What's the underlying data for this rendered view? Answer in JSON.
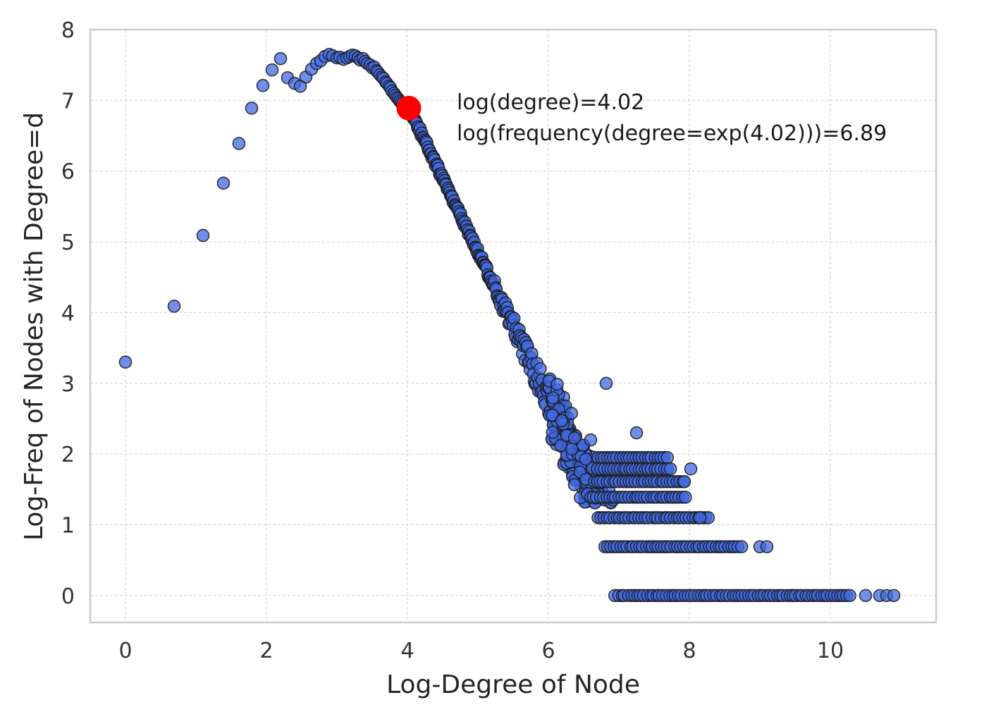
{
  "chart_data": {
    "type": "scatter",
    "xlabel": "Log-Degree of Node",
    "ylabel": "Log-Freq of Nodes with Degree=d",
    "xlim": [
      -0.5,
      11.5
    ],
    "ylim": [
      -0.38,
      8.0
    ],
    "xticks": [
      0,
      2,
      4,
      6,
      8,
      10
    ],
    "yticks": [
      0,
      1,
      2,
      3,
      4,
      5,
      6,
      7,
      8
    ],
    "grid": true,
    "marker_color": "#4169e1",
    "highlight_color": "#ff0000",
    "points": [
      [
        0.0,
        3.3
      ],
      [
        0.69,
        4.09
      ],
      [
        1.1,
        5.09
      ],
      [
        1.39,
        5.83
      ],
      [
        1.61,
        6.39
      ],
      [
        1.79,
        6.89
      ],
      [
        1.95,
        7.21
      ],
      [
        2.08,
        7.43
      ],
      [
        2.2,
        7.59
      ],
      [
        2.3,
        7.32
      ],
      [
        2.4,
        7.24
      ],
      [
        2.48,
        7.2
      ],
      [
        2.56,
        7.33
      ],
      [
        2.64,
        7.44
      ],
      [
        2.71,
        7.52
      ],
      [
        2.77,
        7.56
      ],
      [
        2.83,
        7.62
      ],
      [
        2.89,
        7.65
      ],
      [
        2.94,
        7.63
      ],
      [
        3.0,
        7.6
      ],
      [
        3.04,
        7.61
      ],
      [
        3.09,
        7.58
      ],
      [
        3.14,
        7.6
      ],
      [
        3.18,
        7.62
      ],
      [
        3.22,
        7.64
      ],
      [
        3.26,
        7.63
      ],
      [
        3.3,
        7.6
      ],
      [
        3.33,
        7.57
      ],
      [
        3.37,
        7.59
      ],
      [
        3.4,
        7.55
      ],
      [
        3.43,
        7.52
      ],
      [
        3.47,
        7.5
      ],
      [
        3.5,
        7.46
      ],
      [
        3.53,
        7.47
      ],
      [
        3.56,
        7.42
      ],
      [
        3.58,
        7.4
      ],
      [
        3.61,
        7.36
      ],
      [
        3.64,
        7.33
      ],
      [
        3.66,
        7.31
      ],
      [
        3.69,
        7.26
      ],
      [
        3.71,
        7.24
      ],
      [
        3.74,
        7.2
      ],
      [
        3.76,
        7.18
      ],
      [
        3.78,
        7.13
      ],
      [
        3.81,
        7.1
      ],
      [
        3.83,
        7.07
      ],
      [
        3.85,
        7.04
      ],
      [
        3.87,
        7.02
      ],
      [
        3.89,
        6.99
      ],
      [
        3.91,
        6.97
      ],
      [
        3.93,
        6.95
      ],
      [
        3.95,
        6.93
      ],
      [
        3.97,
        6.9
      ],
      [
        3.99,
        6.9
      ]
    ],
    "highlight": {
      "x": 4.02,
      "y": 6.89
    },
    "annotation": [
      "log(degree)=4.02",
      "log(frequency(degree=exp(4.02)))=6.89"
    ]
  }
}
